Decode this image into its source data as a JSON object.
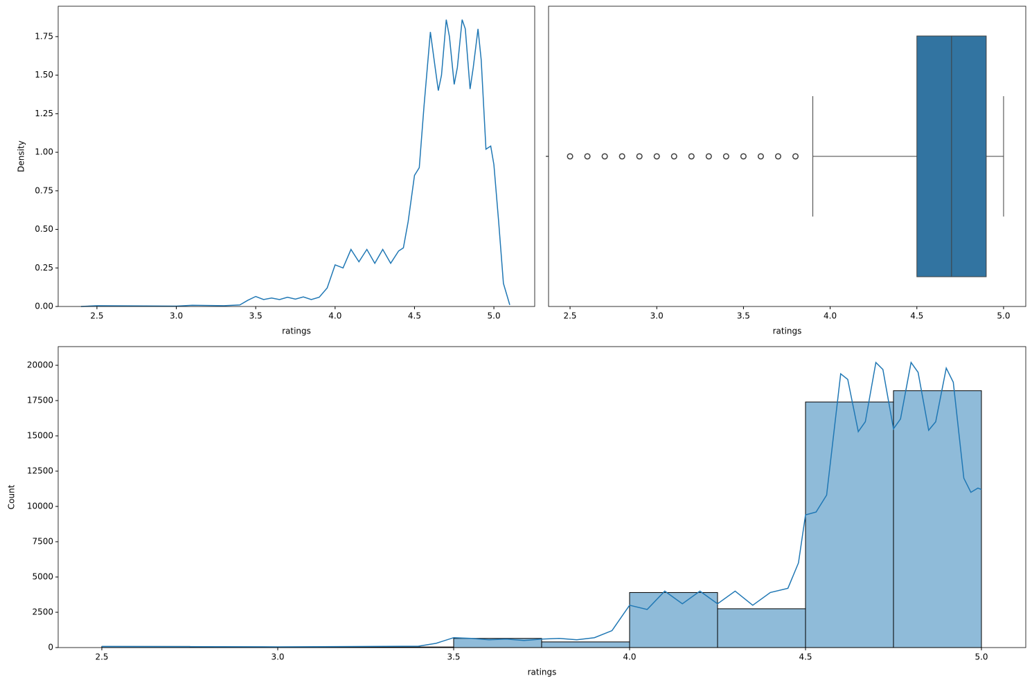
{
  "chart_data": [
    {
      "type": "line",
      "xlabel": "ratings",
      "ylabel": "Density",
      "color": "#1f77b4",
      "x": [
        2.4,
        2.5,
        3.0,
        3.1,
        3.3,
        3.4,
        3.45,
        3.5,
        3.55,
        3.6,
        3.65,
        3.7,
        3.75,
        3.8,
        3.85,
        3.9,
        3.95,
        4.0,
        4.05,
        4.1,
        4.15,
        4.2,
        4.25,
        4.3,
        4.35,
        4.4,
        4.43,
        4.46,
        4.5,
        4.53,
        4.56,
        4.6,
        4.63,
        4.65,
        4.67,
        4.7,
        4.72,
        4.75,
        4.77,
        4.8,
        4.82,
        4.85,
        4.87,
        4.9,
        4.92,
        4.95,
        4.98,
        5.0,
        5.03,
        5.06,
        5.1
      ],
      "values": [
        0,
        0.005,
        0.002,
        0.008,
        0.005,
        0.01,
        0.04,
        0.065,
        0.045,
        0.055,
        0.045,
        0.06,
        0.048,
        0.062,
        0.045,
        0.06,
        0.12,
        0.27,
        0.25,
        0.37,
        0.29,
        0.37,
        0.28,
        0.37,
        0.28,
        0.36,
        0.38,
        0.55,
        0.85,
        0.9,
        1.3,
        1.78,
        1.55,
        1.4,
        1.5,
        1.86,
        1.75,
        1.44,
        1.55,
        1.86,
        1.8,
        1.41,
        1.55,
        1.8,
        1.6,
        1.02,
        1.04,
        0.92,
        0.55,
        0.15,
        0.01
      ],
      "xlim": [
        2.256,
        5.257
      ],
      "ylim": [
        0,
        1.947
      ],
      "xticks": [
        2.5,
        {
          "value": 3.0,
          "label": "3.0"
        },
        3.5,
        {
          "value": 4.0,
          "label": "4.0"
        },
        4.5,
        {
          "value": 5.0,
          "label": "5.0"
        }
      ],
      "yticks": [
        {
          "value": 0,
          "label": "0.00"
        },
        {
          "value": 0.25,
          "label": "0.25"
        },
        {
          "value": 0.5,
          "label": "0.50"
        },
        {
          "value": 0.75,
          "label": "0.75"
        },
        {
          "value": 1.0,
          "label": "1.00"
        },
        {
          "value": 1.25,
          "label": "1.25"
        },
        {
          "value": 1.5,
          "label": "1.50"
        },
        {
          "value": 1.75,
          "label": "1.75"
        }
      ]
    },
    {
      "type": "box",
      "xlabel": "ratings",
      "color": "#3274a1",
      "box": {
        "whislo": 3.9,
        "q1": 4.5,
        "med": 4.7,
        "q3": 4.9,
        "whishi": 5.0
      },
      "outliers": [
        2.5,
        2.6,
        2.7,
        2.8,
        2.9,
        3.0,
        3.1,
        3.2,
        3.3,
        3.4,
        3.5,
        3.6,
        3.7,
        3.8
      ],
      "xlim": [
        2.376,
        5.128
      ],
      "xticks": [
        2.5,
        {
          "value": 3.0,
          "label": "3.0"
        },
        3.5,
        {
          "value": 4.0,
          "label": "4.0"
        },
        4.5,
        {
          "value": 5.0,
          "label": "5.0"
        }
      ]
    },
    {
      "type": "histogram",
      "xlabel": "ratings",
      "ylabel": "Count",
      "color": "#1f77b4",
      "bins": [
        2.5,
        2.75,
        3.0,
        3.25,
        3.5,
        3.75,
        4.0,
        4.25,
        4.5,
        4.75,
        5.0
      ],
      "counts": [
        80,
        40,
        30,
        40,
        650,
        400,
        3900,
        2750,
        17400,
        18200
      ],
      "kde": {
        "x": [
          2.5,
          3.0,
          3.4,
          3.45,
          3.5,
          3.55,
          3.6,
          3.65,
          3.7,
          3.75,
          3.8,
          3.85,
          3.9,
          3.95,
          4.0,
          4.05,
          4.1,
          4.15,
          4.2,
          4.25,
          4.3,
          4.35,
          4.4,
          4.45,
          4.48,
          4.5,
          4.53,
          4.56,
          4.6,
          4.62,
          4.65,
          4.67,
          4.7,
          4.72,
          4.75,
          4.77,
          4.8,
          4.82,
          4.85,
          4.87,
          4.9,
          4.92,
          4.95,
          4.97,
          4.99,
          5.0
        ],
        "values": [
          80,
          50,
          100,
          300,
          700,
          650,
          550,
          600,
          500,
          600,
          650,
          550,
          700,
          1200,
          3000,
          2700,
          4000,
          3100,
          4000,
          3100,
          4000,
          3000,
          3900,
          4200,
          6000,
          9400,
          9600,
          10800,
          19400,
          19000,
          15300,
          16000,
          20200,
          19700,
          15500,
          16200,
          20200,
          19500,
          15400,
          16000,
          19800,
          18800,
          12000,
          11000,
          11300,
          11200
        ]
      },
      "xlim": [
        2.376,
        5.126
      ],
      "ylim": [
        0,
        21324
      ],
      "xticks": [
        2.5,
        {
          "value": 3.0,
          "label": "3.0"
        },
        3.5,
        {
          "value": 4.0,
          "label": "4.0"
        },
        4.5,
        {
          "value": 5.0,
          "label": "5.0"
        }
      ],
      "yticks": [
        0,
        2500,
        5000,
        7500,
        10000,
        12500,
        15000,
        17500,
        20000
      ]
    }
  ]
}
